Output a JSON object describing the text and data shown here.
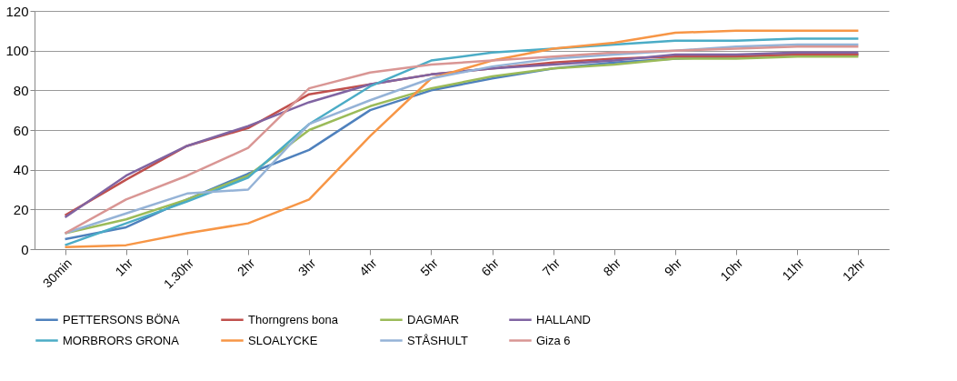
{
  "chart_data": {
    "type": "line",
    "categories": [
      "30min",
      "1hr",
      "1.30hr",
      "2hr",
      "3hr",
      "4hr",
      "5hr",
      "6hr",
      "7hr",
      "8hr",
      "9hr",
      "10hr",
      "11hr",
      "12hr"
    ],
    "ylim": [
      0,
      120
    ],
    "yticks": [
      0,
      20,
      40,
      60,
      80,
      100,
      120
    ],
    "grid": "y",
    "legend": "bottom",
    "marker": "none",
    "line_style": "solid",
    "series": [
      {
        "name": "PETTERSONS BÖNA",
        "color": "#4f81bd",
        "values": [
          5,
          11,
          25,
          38,
          50,
          70,
          80,
          86,
          91,
          94,
          96,
          97,
          98,
          98
        ]
      },
      {
        "name": "Thorngrens bona",
        "color": "#c0504d",
        "values": [
          17,
          35,
          52,
          61,
          78,
          83,
          88,
          91,
          94,
          96,
          97,
          97,
          98,
          98
        ]
      },
      {
        "name": "DAGMAR",
        "color": "#9bbb59",
        "values": [
          8,
          15,
          25,
          37,
          60,
          72,
          81,
          87,
          91,
          93,
          96,
          96,
          97,
          97
        ]
      },
      {
        "name": "HALLAND",
        "color": "#8064a2",
        "values": [
          16,
          37,
          52,
          62,
          74,
          83,
          88,
          91,
          93,
          95,
          98,
          98,
          99,
          99
        ]
      },
      {
        "name": "MORBRORS GRONA",
        "color": "#4bacc6",
        "values": [
          2,
          13,
          24,
          36,
          63,
          82,
          95,
          99,
          101,
          103,
          105,
          105,
          106,
          106
        ]
      },
      {
        "name": "SLOALYCKE",
        "color": "#f79646",
        "values": [
          1,
          2,
          8,
          13,
          25,
          57,
          86,
          95,
          101,
          104,
          109,
          110,
          110,
          110
        ]
      },
      {
        "name": "STÅSHULT",
        "color": "#95b3d7",
        "values": [
          8,
          18,
          28,
          30,
          63,
          75,
          86,
          92,
          96,
          98,
          100,
          102,
          103,
          103
        ]
      },
      {
        "name": "Giza 6",
        "color": "#d99694",
        "values": [
          8,
          25,
          37,
          51,
          81,
          89,
          93,
          95,
          97,
          99,
          100,
          101,
          102,
          102
        ]
      }
    ]
  }
}
